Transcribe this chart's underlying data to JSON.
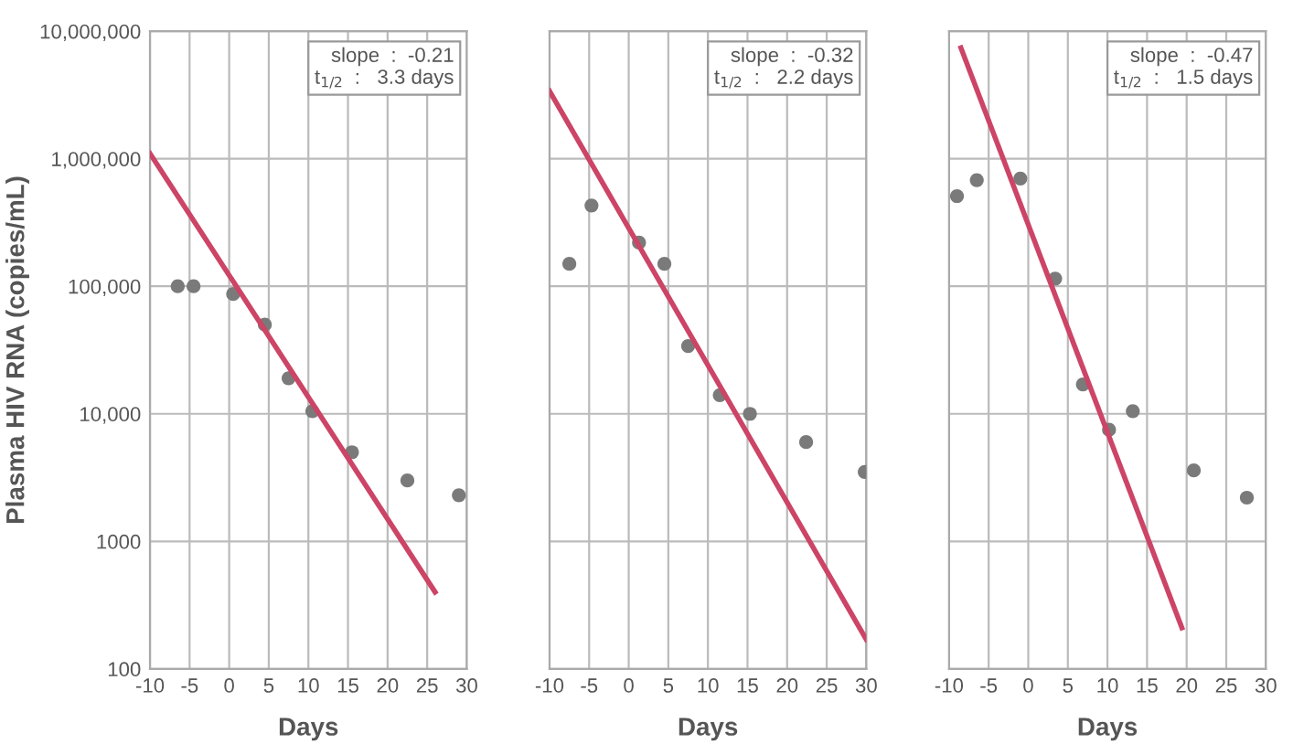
{
  "chart_data": [
    {
      "type": "scatter",
      "ylabel": "Plasma HIV RNA (copies/mL)",
      "xlabel": "Days",
      "log": "y",
      "grid": true,
      "xlim": [
        -10,
        30
      ],
      "xticks": [
        -10,
        -5,
        0,
        5,
        10,
        15,
        20,
        25,
        30
      ],
      "ylim": [
        100,
        10000000
      ],
      "yticks": [
        {
          "value": 100,
          "label": "100"
        },
        {
          "value": 1000,
          "label": "1000"
        },
        {
          "value": 10000,
          "label": "10,000"
        },
        {
          "value": 100000,
          "label": "100,000"
        },
        {
          "value": 1000000,
          "label": "1,000,000"
        },
        {
          "value": 10000000,
          "label": "10,000,000"
        }
      ],
      "annotations": [
        "slope  :  -0.21",
        "t$_{1/2}$  :   3.3 days"
      ],
      "series": [
        {
          "marker": "circle",
          "color": "#7a7a7a",
          "x": [
            -6.5,
            -4.5,
            0.5,
            4.5,
            7.5,
            10.5,
            15.5,
            22.5,
            29
          ],
          "values": [
            100000,
            100000,
            87000,
            50000,
            19000,
            10500,
            5000,
            3000,
            2300
          ]
        },
        {
          "type": "line",
          "color": "#cc4466",
          "x": [
            -10,
            26
          ],
          "values": [
            1100000,
            400
          ]
        }
      ]
    },
    {
      "type": "scatter",
      "xlabel": "Days",
      "log": "y",
      "grid": true,
      "tick_labels": "x",
      "xlim": [
        -10,
        30
      ],
      "xticks": [
        -10,
        -5,
        0,
        5,
        10,
        15,
        20,
        25,
        30
      ],
      "ylim": [
        100,
        10000000
      ],
      "yticks": [
        {
          "value": 100,
          "label": null
        },
        {
          "value": 1000,
          "label": null
        },
        {
          "value": 10000,
          "label": null
        },
        {
          "value": 100000,
          "label": null
        },
        {
          "value": 1000000,
          "label": null
        },
        {
          "value": 10000000,
          "label": null
        }
      ],
      "annotations": [
        "slope  :  -0.32",
        "t$_{1/2}$  :   2.2 days"
      ],
      "series": [
        {
          "marker": "circle",
          "color": "#7a7a7a",
          "x": [
            -7.5,
            -4.7,
            1.3,
            4.5,
            7.5,
            11.5,
            15.3,
            22.4,
            29.8
          ],
          "values": [
            150000,
            430000,
            220000,
            150000,
            34000,
            14000,
            10000,
            6000,
            3500
          ]
        },
        {
          "type": "line",
          "color": "#cc4466",
          "x": [
            -10,
            30
          ],
          "values": [
            3400000,
            170
          ]
        }
      ]
    },
    {
      "type": "scatter",
      "xlabel": "Days",
      "log": "y",
      "grid": true,
      "tick_labels": "x",
      "xlim": [
        -10,
        30
      ],
      "xticks": [
        -10,
        -5,
        0,
        5,
        10,
        15,
        20,
        25,
        30
      ],
      "ylim": [
        100,
        10000000
      ],
      "yticks": [
        {
          "value": 100,
          "label": null
        },
        {
          "value": 1000,
          "label": null
        },
        {
          "value": 10000,
          "label": null
        },
        {
          "value": 100000,
          "label": null
        },
        {
          "value": 1000000,
          "label": null
        },
        {
          "value": 10000000,
          "label": null
        }
      ],
      "annotations": [
        "slope  :  -0.47",
        "t$_{1/2}$  :   1.5 days"
      ],
      "series": [
        {
          "marker": "circle",
          "color": "#7a7a7a",
          "x": [
            -9,
            -6.5,
            -1,
            3.4,
            6.9,
            10.2,
            13.2,
            20.9,
            27.6
          ],
          "values": [
            510000,
            680000,
            700000,
            115000,
            17000,
            7500,
            10500,
            3600,
            2200
          ]
        },
        {
          "type": "line",
          "color": "#cc4466",
          "x": [
            -8.5,
            19.4
          ],
          "values": [
            7400000,
            210
          ]
        }
      ]
    }
  ]
}
